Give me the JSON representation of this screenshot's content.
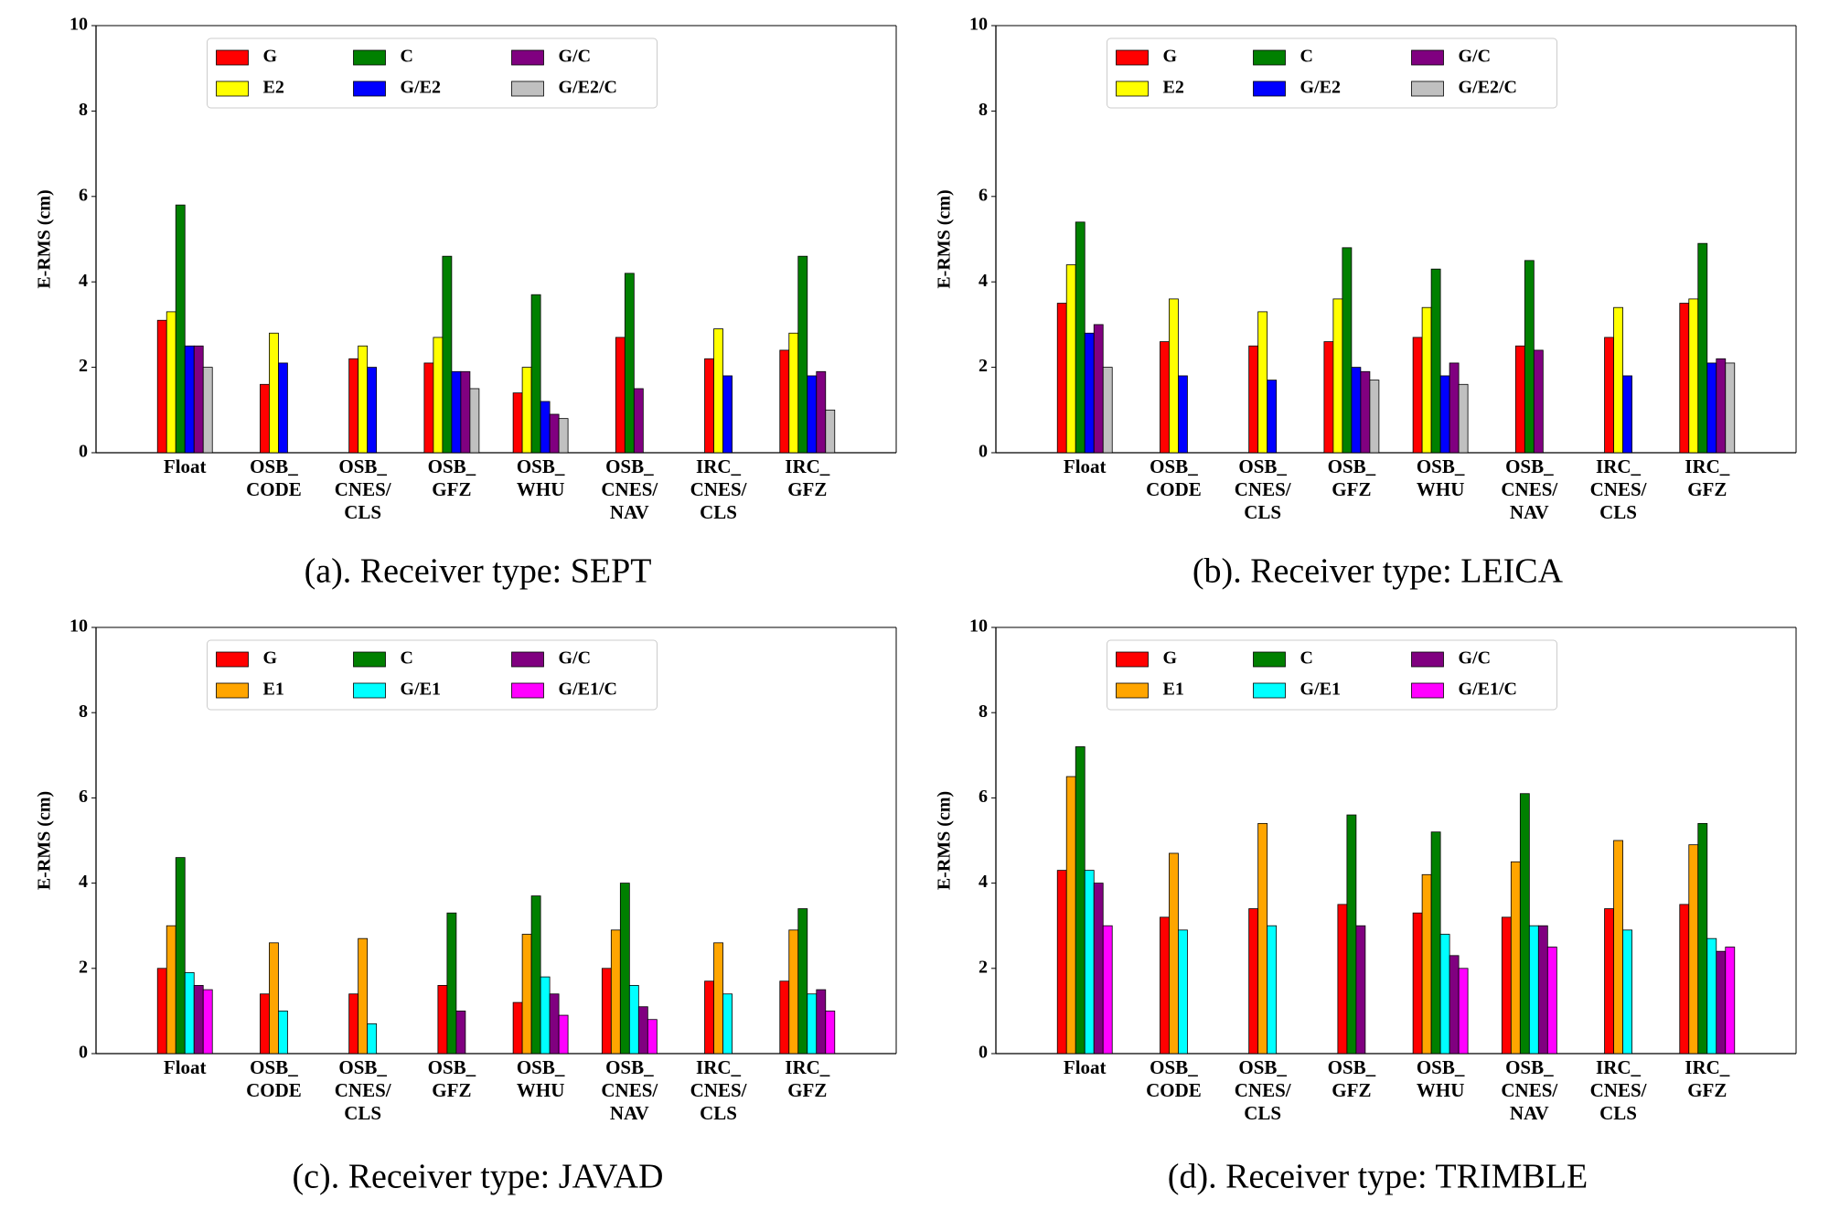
{
  "chart_data": [
    {
      "type": "bar",
      "title": "(a). Receiver type: SEPT",
      "y_label": "E-RMS (cm)",
      "categories": [
        "Float",
        "OSB_\nCODE",
        "OSB_\nCNES/\nCLS",
        "OSB_\nGFZ",
        "OSB_\nWHU",
        "OSB_\nCNES/\nNAV",
        "IRC_\nCNES/\nCLS",
        "IRC_\nGFZ"
      ],
      "ylim": [
        0,
        10
      ],
      "yticks": [
        0,
        2,
        4,
        6,
        8,
        10
      ],
      "legend": "upper center",
      "series": [
        {
          "name": "G",
          "color": "#ff0000",
          "values": [
            3.1,
            1.6,
            2.2,
            2.1,
            1.4,
            2.7,
            2.2,
            2.4
          ]
        },
        {
          "name": "E2",
          "color": "#ffff00",
          "values": [
            3.3,
            2.8,
            2.5,
            2.7,
            2.0,
            null,
            2.9,
            2.8
          ]
        },
        {
          "name": "C",
          "color": "#008000",
          "values": [
            5.8,
            null,
            null,
            4.6,
            3.7,
            4.2,
            null,
            4.6
          ]
        },
        {
          "name": "G/E2",
          "color": "#0000ff",
          "values": [
            2.5,
            2.1,
            2.0,
            1.9,
            1.2,
            null,
            1.8,
            1.8
          ]
        },
        {
          "name": "G/C",
          "color": "#800080",
          "values": [
            2.5,
            null,
            null,
            1.9,
            0.9,
            1.5,
            null,
            1.9
          ]
        },
        {
          "name": "G/E2/C",
          "color": "#c0c0c0",
          "values": [
            2.0,
            null,
            null,
            1.5,
            0.8,
            null,
            null,
            1.0
          ]
        }
      ]
    },
    {
      "type": "bar",
      "title": "(b). Receiver type: LEICA",
      "y_label": "E-RMS (cm)",
      "categories": [
        "Float",
        "OSB_\nCODE",
        "OSB_\nCNES/\nCLS",
        "OSB_\nGFZ",
        "OSB_\nWHU",
        "OSB_\nCNES/\nNAV",
        "IRC_\nCNES/\nCLS",
        "IRC_\nGFZ"
      ],
      "ylim": [
        0,
        10
      ],
      "yticks": [
        0,
        2,
        4,
        6,
        8,
        10
      ],
      "legend": "upper center",
      "series": [
        {
          "name": "G",
          "color": "#ff0000",
          "values": [
            3.5,
            2.6,
            2.5,
            2.6,
            2.7,
            2.5,
            2.7,
            3.5
          ]
        },
        {
          "name": "E2",
          "color": "#ffff00",
          "values": [
            4.4,
            3.6,
            3.3,
            3.6,
            3.4,
            null,
            3.4,
            3.6
          ]
        },
        {
          "name": "C",
          "color": "#008000",
          "values": [
            5.4,
            null,
            null,
            4.8,
            4.3,
            4.5,
            null,
            4.9
          ]
        },
        {
          "name": "G/E2",
          "color": "#0000ff",
          "values": [
            2.8,
            1.8,
            1.7,
            2.0,
            1.8,
            null,
            1.8,
            2.1
          ]
        },
        {
          "name": "G/C",
          "color": "#800080",
          "values": [
            3.0,
            null,
            null,
            1.9,
            2.1,
            2.4,
            null,
            2.2
          ]
        },
        {
          "name": "G/E2/C",
          "color": "#c0c0c0",
          "values": [
            2.0,
            null,
            null,
            1.7,
            1.6,
            null,
            null,
            2.1
          ]
        }
      ]
    },
    {
      "type": "bar",
      "title": "(c). Receiver type: JAVAD",
      "y_label": "E-RMS (cm)",
      "categories": [
        "Float",
        "OSB_\nCODE",
        "OSB_\nCNES/\nCLS",
        "OSB_\nGFZ",
        "OSB_\nWHU",
        "OSB_\nCNES/\nNAV",
        "IRC_\nCNES/\nCLS",
        "IRC_\nGFZ"
      ],
      "ylim": [
        0,
        10
      ],
      "yticks": [
        0,
        2,
        4,
        6,
        8,
        10
      ],
      "legend": "upper center",
      "series": [
        {
          "name": "G",
          "color": "#ff0000",
          "values": [
            2.0,
            1.4,
            1.4,
            1.6,
            1.2,
            2.0,
            1.7,
            1.7
          ]
        },
        {
          "name": "E1",
          "color": "#ffa500",
          "values": [
            3.0,
            2.6,
            2.7,
            null,
            2.8,
            2.9,
            2.6,
            2.9
          ]
        },
        {
          "name": "C",
          "color": "#008000",
          "values": [
            4.6,
            null,
            null,
            3.3,
            3.7,
            4.0,
            null,
            3.4
          ]
        },
        {
          "name": "G/E1",
          "color": "#00ffff",
          "values": [
            1.9,
            1.0,
            0.7,
            null,
            1.8,
            1.6,
            1.4,
            1.4
          ]
        },
        {
          "name": "G/C",
          "color": "#800080",
          "values": [
            1.6,
            null,
            null,
            1.0,
            1.4,
            1.1,
            null,
            1.5
          ]
        },
        {
          "name": "G/E1/C",
          "color": "#ff00ff",
          "values": [
            1.5,
            null,
            null,
            null,
            0.9,
            0.8,
            null,
            1.0
          ]
        }
      ]
    },
    {
      "type": "bar",
      "title": "(d). Receiver type: TRIMBLE",
      "y_label": "E-RMS (cm)",
      "categories": [
        "Float",
        "OSB_\nCODE",
        "OSB_\nCNES/\nCLS",
        "OSB_\nGFZ",
        "OSB_\nWHU",
        "OSB_\nCNES/\nNAV",
        "IRC_\nCNES/\nCLS",
        "IRC_\nGFZ"
      ],
      "ylim": [
        0,
        10
      ],
      "yticks": [
        0,
        2,
        4,
        6,
        8,
        10
      ],
      "legend": "upper center",
      "series": [
        {
          "name": "G",
          "color": "#ff0000",
          "values": [
            4.3,
            3.2,
            3.4,
            3.5,
            3.3,
            3.2,
            3.4,
            3.5
          ]
        },
        {
          "name": "E1",
          "color": "#ffa500",
          "values": [
            6.5,
            4.7,
            5.4,
            null,
            4.2,
            4.5,
            5.0,
            4.9
          ]
        },
        {
          "name": "C",
          "color": "#008000",
          "values": [
            7.2,
            null,
            null,
            5.6,
            5.2,
            6.1,
            null,
            5.4
          ]
        },
        {
          "name": "G/E1",
          "color": "#00ffff",
          "values": [
            4.3,
            2.9,
            3.0,
            null,
            2.8,
            3.0,
            2.9,
            2.7
          ]
        },
        {
          "name": "G/C",
          "color": "#800080",
          "values": [
            4.0,
            null,
            null,
            3.0,
            2.3,
            3.0,
            null,
            2.4
          ]
        },
        {
          "name": "G/E1/C",
          "color": "#ff00ff",
          "values": [
            3.0,
            null,
            null,
            null,
            2.0,
            2.5,
            null,
            2.5
          ]
        }
      ]
    }
  ]
}
